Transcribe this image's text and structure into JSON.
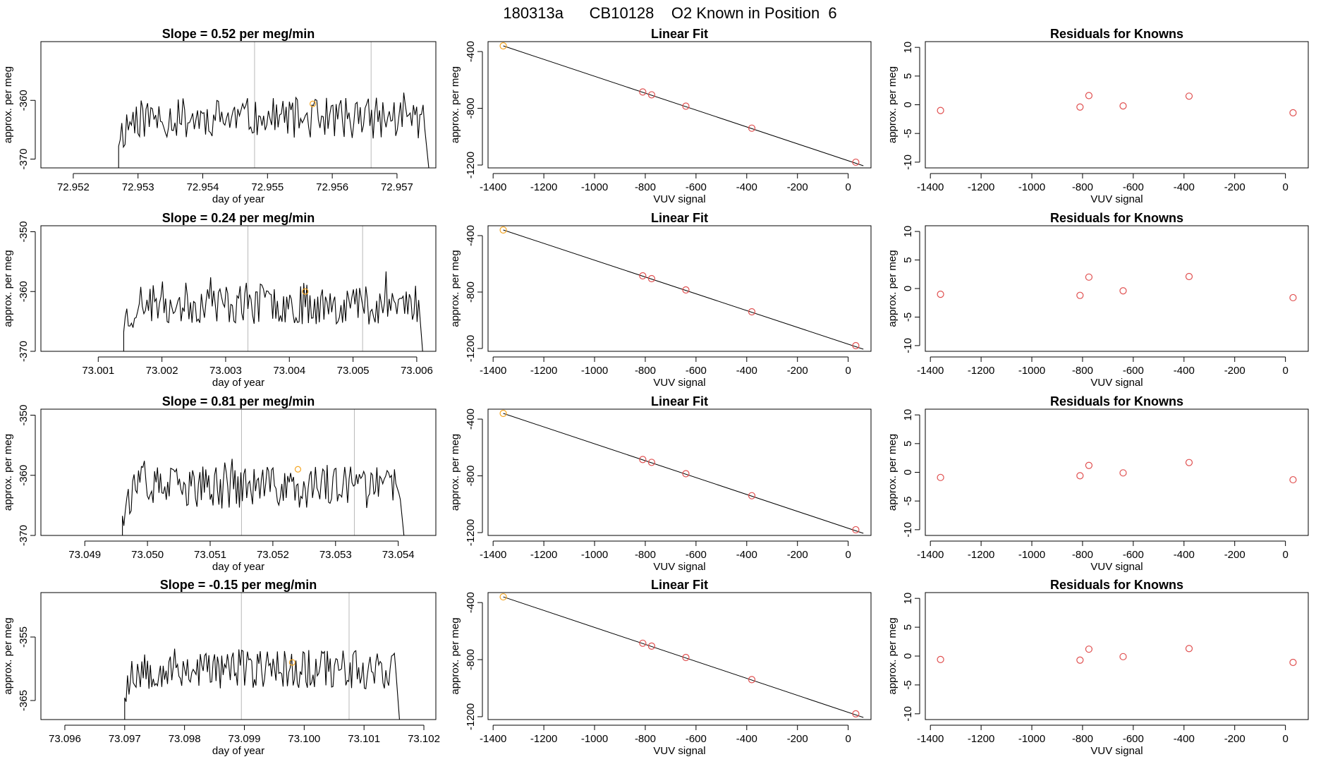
{
  "suptitle": "180313a      CB10128    O2 Known in Position  6",
  "colors": {
    "series": "#000000",
    "marker": "#f5a623",
    "residual": "#e05050",
    "vline": "#b8b8b8",
    "frame": "#000000"
  },
  "chart_data": [
    {
      "type": "line",
      "row": 0,
      "title": "Slope =  0.52  per meg/min",
      "xlabel": "day of year",
      "ylabel": "approx. per meg",
      "xlim": [
        72.9515,
        72.9576
      ],
      "ylim": [
        -371.5,
        -350
      ],
      "xticks": [
        72.952,
        72.953,
        72.954,
        72.955,
        72.956,
        72.957
      ],
      "xdec": 3,
      "yticks": [
        -370,
        -360
      ],
      "trace_start": 72.9527,
      "trace_end": 72.9575,
      "trace_base": -363,
      "trace_amp": 3.5,
      "seed": 11,
      "vlines": [
        72.9548,
        72.9566
      ],
      "marker": [
        72.9557,
        -360.6
      ]
    },
    {
      "type": "scatter",
      "row": 0,
      "title": "Linear Fit",
      "xlabel": "VUV signal",
      "ylabel": "approx. per meg",
      "xlim": [
        -1420,
        90
      ],
      "ylim": [
        -1220,
        -330
      ],
      "xticks": [
        -1400,
        -1200,
        -1000,
        -800,
        -600,
        -400,
        -200,
        0
      ],
      "yticks": [
        -400,
        -800,
        -1200
      ],
      "x": [
        -1360,
        -810,
        -775,
        -640,
        -380,
        30
      ],
      "y": [
        -360,
        -685,
        -705,
        -785,
        -940,
        -1180
      ],
      "fit": [
        [
          -1360,
          -360
        ],
        [
          60,
          -1205
        ]
      ]
    },
    {
      "type": "scatter",
      "row": 0,
      "title": "Residuals for Knowns",
      "xlabel": "VUV signal",
      "ylabel": "approx. per meg",
      "xlim": [
        -1420,
        90
      ],
      "ylim": [
        -11,
        11
      ],
      "xticks": [
        -1400,
        -1200,
        -1000,
        -800,
        -600,
        -400,
        -200,
        0
      ],
      "yticks": [
        10,
        5,
        0,
        -5,
        -10
      ],
      "x": [
        -1360,
        -810,
        -775,
        -640,
        -380,
        30
      ],
      "y": [
        -1.0,
        -0.4,
        1.6,
        -0.2,
        1.5,
        -1.4
      ]
    },
    {
      "type": "line",
      "row": 1,
      "title": "Slope =  0.24  per meg/min",
      "xlabel": "day of year",
      "ylabel": "approx. per meg",
      "xlim": [
        73.0001,
        73.0063
      ],
      "ylim": [
        -370,
        -349
      ],
      "xticks": [
        73.001,
        73.002,
        73.003,
        73.004,
        73.005,
        73.006
      ],
      "xdec": 3,
      "yticks": [
        -350,
        -360,
        -370
      ],
      "trace_start": 73.0014,
      "trace_end": 73.0061,
      "trace_base": -362,
      "trace_amp": 3.5,
      "seed": 23,
      "vlines": [
        73.00335,
        73.00515
      ],
      "marker": [
        73.00425,
        -360.0
      ]
    },
    {
      "type": "scatter",
      "row": 1,
      "title": "Linear Fit",
      "xlabel": "VUV signal",
      "ylabel": "approx. per meg",
      "xlim": [
        -1420,
        90
      ],
      "ylim": [
        -1220,
        -330
      ],
      "xticks": [
        -1400,
        -1200,
        -1000,
        -800,
        -600,
        -400,
        -200,
        0
      ],
      "yticks": [
        -400,
        -800,
        -1200
      ],
      "x": [
        -1360,
        -810,
        -775,
        -640,
        -380,
        30
      ],
      "y": [
        -360,
        -685,
        -705,
        -785,
        -940,
        -1180
      ],
      "fit": [
        [
          -1360,
          -360
        ],
        [
          60,
          -1205
        ]
      ]
    },
    {
      "type": "scatter",
      "row": 1,
      "title": "Residuals for Knowns",
      "xlabel": "VUV signal",
      "ylabel": "approx. per meg",
      "xlim": [
        -1420,
        90
      ],
      "ylim": [
        -11,
        11
      ],
      "xticks": [
        -1400,
        -1200,
        -1000,
        -800,
        -600,
        -400,
        -200,
        0
      ],
      "yticks": [
        10,
        5,
        0,
        -5,
        -10
      ],
      "x": [
        -1360,
        -810,
        -775,
        -640,
        -380,
        30
      ],
      "y": [
        -1.0,
        -1.2,
        2.0,
        -0.4,
        2.1,
        -1.6
      ]
    },
    {
      "type": "line",
      "row": 2,
      "title": "Slope =  0.81  per meg/min",
      "xlabel": "day of year",
      "ylabel": "approx. per meg",
      "xlim": [
        73.0483,
        73.0546
      ],
      "ylim": [
        -370,
        -349
      ],
      "xticks": [
        73.049,
        73.05,
        73.051,
        73.052,
        73.053,
        73.054
      ],
      "xdec": 3,
      "yticks": [
        -350,
        -360,
        -370
      ],
      "trace_start": 73.0496,
      "trace_end": 73.0541,
      "trace_base": -362,
      "trace_amp": 3.5,
      "seed": 37,
      "vlines": [
        73.0515,
        73.0533
      ],
      "marker": [
        73.0524,
        -359.0
      ]
    },
    {
      "type": "scatter",
      "row": 2,
      "title": "Linear Fit",
      "xlabel": "VUV signal",
      "ylabel": "approx. per meg",
      "xlim": [
        -1420,
        90
      ],
      "ylim": [
        -1220,
        -330
      ],
      "xticks": [
        -1400,
        -1200,
        -1000,
        -800,
        -600,
        -400,
        -200,
        0
      ],
      "yticks": [
        -400,
        -800,
        -1200
      ],
      "x": [
        -1360,
        -810,
        -775,
        -640,
        -380,
        30
      ],
      "y": [
        -360,
        -685,
        -705,
        -785,
        -940,
        -1180
      ],
      "fit": [
        [
          -1360,
          -360
        ],
        [
          60,
          -1205
        ]
      ]
    },
    {
      "type": "scatter",
      "row": 2,
      "title": "Residuals for Knowns",
      "xlabel": "VUV signal",
      "ylabel": "approx. per meg",
      "xlim": [
        -1420,
        90
      ],
      "ylim": [
        -11,
        11
      ],
      "xticks": [
        -1400,
        -1200,
        -1000,
        -800,
        -600,
        -400,
        -200,
        0
      ],
      "yticks": [
        10,
        5,
        0,
        -5,
        -10
      ],
      "x": [
        -1360,
        -810,
        -775,
        -640,
        -380,
        30
      ],
      "y": [
        -0.9,
        -0.6,
        1.2,
        -0.1,
        1.7,
        -1.3
      ]
    },
    {
      "type": "line",
      "row": 3,
      "title": "Slope =  -0.15  per meg/min",
      "xlabel": "day of year",
      "ylabel": "approx. per meg",
      "xlim": [
        73.0956,
        73.1022
      ],
      "ylim": [
        -368,
        -348
      ],
      "xticks": [
        73.096,
        73.097,
        73.098,
        73.099,
        73.1,
        73.101,
        73.102
      ],
      "xdec": 3,
      "yticks": [
        -355,
        -365
      ],
      "trace_start": 73.097,
      "trace_end": 73.1016,
      "trace_base": -360,
      "trace_amp": 3.2,
      "seed": 53,
      "vlines": [
        73.09895,
        73.10075
      ],
      "marker": [
        73.0998,
        -359.0
      ]
    },
    {
      "type": "scatter",
      "row": 3,
      "title": "Linear Fit",
      "xlabel": "VUV signal",
      "ylabel": "approx. per meg",
      "xlim": [
        -1420,
        90
      ],
      "ylim": [
        -1220,
        -330
      ],
      "xticks": [
        -1400,
        -1200,
        -1000,
        -800,
        -600,
        -400,
        -200,
        0
      ],
      "yticks": [
        -400,
        -800,
        -1200
      ],
      "x": [
        -1360,
        -810,
        -775,
        -640,
        -380,
        30
      ],
      "y": [
        -360,
        -685,
        -705,
        -785,
        -940,
        -1180
      ],
      "fit": [
        [
          -1360,
          -360
        ],
        [
          60,
          -1205
        ]
      ]
    },
    {
      "type": "scatter",
      "row": 3,
      "title": "Residuals for Knowns",
      "xlabel": "VUV signal",
      "ylabel": "approx. per meg",
      "xlim": [
        -1420,
        90
      ],
      "ylim": [
        -11,
        11
      ],
      "xticks": [
        -1400,
        -1200,
        -1000,
        -800,
        -600,
        -400,
        -200,
        0
      ],
      "yticks": [
        10,
        5,
        0,
        -5,
        -10
      ],
      "x": [
        -1360,
        -810,
        -775,
        -640,
        -380,
        30
      ],
      "y": [
        -0.6,
        -0.7,
        1.2,
        -0.1,
        1.3,
        -1.1
      ]
    }
  ]
}
